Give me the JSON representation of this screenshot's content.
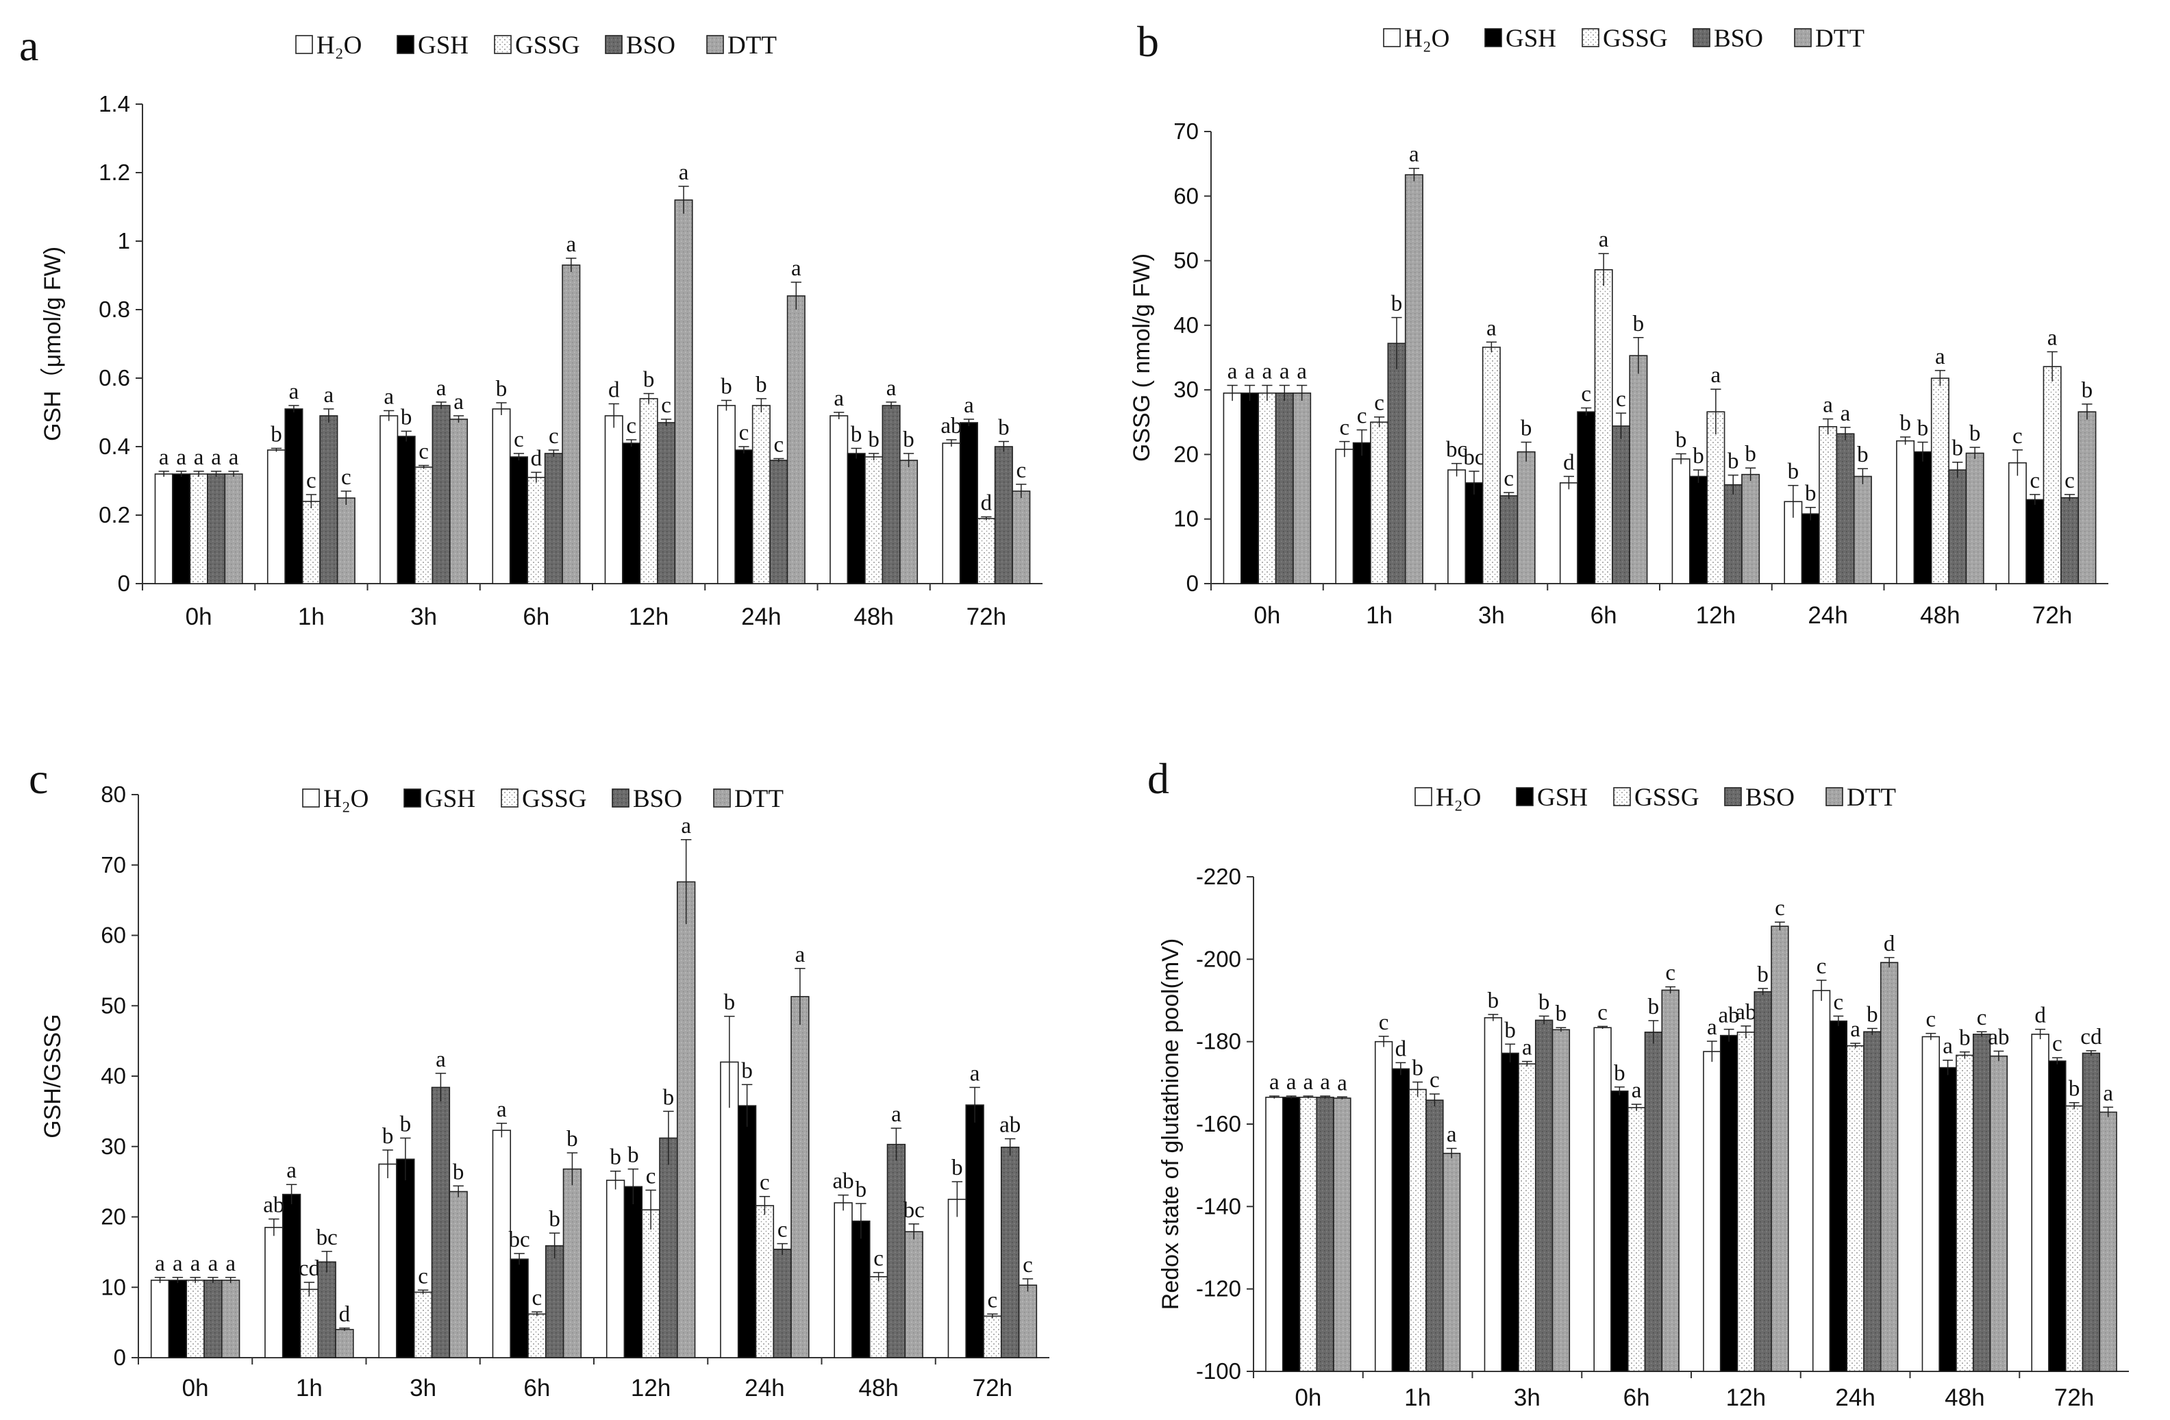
{
  "series_styles": [
    {
      "name": "H2O",
      "fill": "#ffffff",
      "pattern": "none"
    },
    {
      "name": "GSH",
      "fill": "#000000",
      "pattern": "none"
    },
    {
      "name": "GSSG",
      "fill": "#ffffff",
      "pattern": "dots"
    },
    {
      "name": "BSO",
      "fill": "#6d6d6d",
      "pattern": "darkgrain"
    },
    {
      "name": "DTT",
      "fill": "#a9a9a9",
      "pattern": "lightgrain"
    }
  ],
  "chart_data": [
    {
      "type": "bar",
      "letter": "a",
      "title": "",
      "ylabel": "GSH（μmol/g FW)",
      "xlabel": "",
      "legend": [
        "H₂O",
        "GSH",
        "GSSG",
        "BSO",
        "DTT"
      ],
      "categories": [
        "0h",
        "1h",
        "3h",
        "6h",
        "12h",
        "24h",
        "48h",
        "72h"
      ],
      "ylim": [
        0,
        1.4
      ],
      "yticks": [
        "0",
        "0.2",
        "0.4",
        "0.6",
        "0.8",
        "1",
        "1.2",
        "1.4"
      ],
      "ytick_values": [
        0,
        0.2,
        0.4,
        0.6,
        0.8,
        1,
        1.2,
        1.4
      ],
      "series": [
        {
          "name": "H2O",
          "values": [
            0.32,
            0.39,
            0.49,
            0.51,
            0.49,
            0.52,
            0.49,
            0.41
          ],
          "errors": [
            0.008,
            0.005,
            0.015,
            0.018,
            0.035,
            0.015,
            0.01,
            0.01
          ],
          "labels": [
            "a",
            "b",
            "a",
            "b",
            "d",
            "b",
            "a",
            "ab"
          ]
        },
        {
          "name": "GSH",
          "values": [
            0.32,
            0.51,
            0.43,
            0.37,
            0.41,
            0.39,
            0.38,
            0.47
          ],
          "errors": [
            0.008,
            0.01,
            0.015,
            0.01,
            0.01,
            0.01,
            0.015,
            0.01
          ],
          "labels": [
            "a",
            "a",
            "b",
            "c",
            "c",
            "c",
            "b",
            "a"
          ]
        },
        {
          "name": "GSSG",
          "values": [
            0.32,
            0.24,
            0.34,
            0.31,
            0.54,
            0.52,
            0.37,
            0.19
          ],
          "errors": [
            0.008,
            0.02,
            0.005,
            0.015,
            0.015,
            0.02,
            0.01,
            0.005
          ],
          "labels": [
            "a",
            "c",
            "c",
            "d",
            "b",
            "b",
            "b",
            "d"
          ]
        },
        {
          "name": "BSO",
          "values": [
            0.32,
            0.49,
            0.52,
            0.38,
            0.47,
            0.36,
            0.52,
            0.4
          ],
          "errors": [
            0.008,
            0.02,
            0.01,
            0.01,
            0.01,
            0.005,
            0.01,
            0.015
          ],
          "labels": [
            "a",
            "a",
            "a",
            "c",
            "c",
            "c",
            "a",
            "b"
          ]
        },
        {
          "name": "DTT",
          "values": [
            0.32,
            0.25,
            0.48,
            0.93,
            1.12,
            0.84,
            0.36,
            0.27
          ],
          "errors": [
            0.008,
            0.02,
            0.01,
            0.02,
            0.04,
            0.04,
            0.02,
            0.02
          ],
          "labels": [
            "a",
            "c",
            "a",
            "a",
            "a",
            "a",
            "b",
            "c"
          ]
        }
      ]
    },
    {
      "type": "bar",
      "letter": "b",
      "title": "",
      "ylabel": "GSSG ( nmol/g FW)",
      "xlabel": "",
      "legend": [
        "H₂O",
        "GSH",
        "GSSG",
        "BSO",
        "DTT"
      ],
      "categories": [
        "0h",
        "1h",
        "3h",
        "6h",
        "12h",
        "24h",
        "48h",
        "72h"
      ],
      "ylim": [
        0,
        70
      ],
      "yticks": [
        "0",
        "10",
        "20",
        "30",
        "40",
        "50",
        "60",
        "70"
      ],
      "ytick_values": [
        0,
        10,
        20,
        30,
        40,
        50,
        60,
        70
      ],
      "series": [
        {
          "name": "H2O",
          "values": [
            29.5,
            20.8,
            17.6,
            15.6,
            19.3,
            12.7,
            22.1,
            18.7
          ],
          "errors": [
            1.2,
            1.2,
            1.0,
            1.0,
            0.8,
            2.5,
            0.6,
            2.0
          ],
          "labels": [
            "a",
            "c",
            "bc",
            "d",
            "b",
            "b",
            "b",
            "c"
          ]
        },
        {
          "name": "GSH",
          "values": [
            29.5,
            21.8,
            15.6,
            26.6,
            16.6,
            10.8,
            20.4,
            13.0
          ],
          "errors": [
            1.2,
            2.0,
            1.8,
            0.6,
            1.0,
            1.0,
            1.5,
            0.8
          ],
          "labels": [
            "a",
            "c",
            "bc",
            "c",
            "b",
            "b",
            "b",
            "c"
          ]
        },
        {
          "name": "GSSG",
          "values": [
            29.5,
            25.0,
            36.6,
            48.6,
            26.6,
            24.3,
            31.8,
            33.6
          ],
          "errors": [
            1.2,
            0.8,
            0.8,
            2.5,
            3.5,
            1.2,
            1.2,
            2.3
          ],
          "labels": [
            "a",
            "c",
            "a",
            "a",
            "a",
            "a",
            "a",
            "a"
          ]
        },
        {
          "name": "BSO",
          "values": [
            29.5,
            37.2,
            13.6,
            24.4,
            15.3,
            23.2,
            17.6,
            13.3
          ],
          "errors": [
            1.2,
            4.0,
            0.5,
            2.0,
            1.5,
            1.0,
            1.2,
            0.5
          ],
          "labels": [
            "a",
            "b",
            "c",
            "c",
            "b",
            "a",
            "b",
            "c"
          ]
        },
        {
          "name": "DTT",
          "values": [
            29.5,
            63.3,
            20.4,
            35.3,
            16.9,
            16.6,
            20.2,
            26.6
          ],
          "errors": [
            1.2,
            1.0,
            1.5,
            2.8,
            1.0,
            1.2,
            0.9,
            1.2
          ],
          "labels": [
            "a",
            "a",
            "b",
            "b",
            "b",
            "b",
            "b",
            "b"
          ]
        }
      ]
    },
    {
      "type": "bar",
      "letter": "c",
      "title": "",
      "ylabel": "GSH/GSSG",
      "xlabel": "",
      "legend": [
        "H₂O",
        "GSH",
        "GSSG",
        "BSO",
        "DTT"
      ],
      "categories": [
        "0h",
        "1h",
        "3h",
        "6h",
        "12h",
        "24h",
        "48h",
        "72h"
      ],
      "ylim": [
        0,
        80
      ],
      "yticks": [
        "0",
        "10",
        "20",
        "30",
        "40",
        "50",
        "60",
        "70",
        "80"
      ],
      "ytick_values": [
        0,
        10,
        20,
        30,
        40,
        50,
        60,
        70,
        80
      ],
      "series": [
        {
          "name": "H2O",
          "values": [
            11,
            18.5,
            27.5,
            32.3,
            25.2,
            42.0,
            22.0,
            22.5
          ],
          "errors": [
            0.4,
            1.2,
            2.0,
            1.0,
            1.3,
            6.5,
            1.1,
            2.5
          ],
          "labels": [
            "a",
            "ab",
            "b",
            "a",
            "b",
            "b",
            "ab",
            "b"
          ]
        },
        {
          "name": "GSH",
          "values": [
            11,
            23.2,
            28.2,
            14.0,
            24.3,
            35.8,
            19.4,
            35.9
          ],
          "errors": [
            0.4,
            1.4,
            3.0,
            0.8,
            2.5,
            3.0,
            2.5,
            2.5
          ],
          "labels": [
            "a",
            "a",
            "b",
            "bc",
            "b",
            "b",
            "b",
            "a"
          ]
        },
        {
          "name": "GSSG",
          "values": [
            11,
            9.7,
            9.3,
            6.2,
            21.0,
            21.6,
            11.5,
            5.9
          ],
          "errors": [
            0.4,
            1.0,
            0.3,
            0.3,
            2.8,
            1.3,
            0.6,
            0.3
          ],
          "labels": [
            "a",
            "cd",
            "c",
            "c",
            "c",
            "c",
            "c",
            "c"
          ]
        },
        {
          "name": "BSO",
          "values": [
            11,
            13.6,
            38.4,
            15.9,
            31.2,
            15.4,
            30.3,
            29.9
          ],
          "errors": [
            0.4,
            1.5,
            2.0,
            1.8,
            3.8,
            0.8,
            2.3,
            1.2
          ],
          "labels": [
            "a",
            "bc",
            "a",
            "b",
            "b",
            "c",
            "a",
            "ab"
          ]
        },
        {
          "name": "DTT",
          "values": [
            11,
            4.0,
            23.6,
            26.8,
            67.6,
            51.3,
            17.9,
            10.3
          ],
          "errors": [
            0.4,
            0.2,
            0.8,
            2.3,
            6.0,
            4.0,
            1.1,
            0.9
          ],
          "labels": [
            "a",
            "d",
            "b",
            "b",
            "a",
            "a",
            "bc",
            "c"
          ]
        }
      ]
    },
    {
      "type": "bar",
      "letter": "d",
      "title": "",
      "ylabel": "Redox state of glutathione pool(mV)",
      "xlabel": "",
      "legend": [
        "H₂O",
        "GSH",
        "GSSG",
        "BSO",
        "DTT"
      ],
      "categories": [
        "0h",
        "1h",
        "3h",
        "6h",
        "12h",
        "24h",
        "48h",
        "72h"
      ],
      "ylim": [
        -100,
        -220
      ],
      "yticks": [
        "-220",
        "-200",
        "-180",
        "-160",
        "-140",
        "-120",
        "-100"
      ],
      "ytick_values": [
        -220,
        -200,
        -180,
        -160,
        -140,
        -120,
        -100
      ],
      "series": [
        {
          "name": "H2O",
          "values": [
            -166.5,
            -180,
            -185.8,
            -183.4,
            -177.6,
            -192.4,
            -181.2,
            -181.8
          ],
          "errors": [
            0.3,
            1.3,
            0.8,
            0.3,
            2.5,
            2.5,
            0.8,
            1.2
          ],
          "labels": [
            "a",
            "c",
            "b",
            "c",
            "a",
            "c",
            "c",
            "d"
          ]
        },
        {
          "name": "GSH",
          "values": [
            -166.5,
            -173.4,
            -177.2,
            -168,
            -181.5,
            -185,
            -173.7,
            -175.3
          ],
          "errors": [
            0.3,
            1.5,
            2.2,
            1.0,
            1.5,
            1.2,
            1.8,
            0.8
          ],
          "labels": [
            "a",
            "d",
            "b",
            "b",
            "ab",
            "c",
            "a",
            "c"
          ]
        },
        {
          "name": "GSSG",
          "values": [
            -166.5,
            -168.4,
            -174.6,
            -164,
            -182.3,
            -179,
            -176.7,
            -164.4
          ],
          "errors": [
            0.3,
            1.8,
            0.6,
            0.8,
            1.5,
            0.6,
            0.8,
            0.8
          ],
          "labels": [
            "a",
            "b",
            "a",
            "a",
            "ab",
            "a",
            "b",
            "b"
          ]
        },
        {
          "name": "BSO",
          "values": [
            -166.5,
            -165.8,
            -185.2,
            -182.3,
            -192.1,
            -182.4,
            -181.8,
            -177.2
          ],
          "errors": [
            0.3,
            1.5,
            1.0,
            2.8,
            0.8,
            0.8,
            0.6,
            0.6
          ],
          "labels": [
            "a",
            "c",
            "b",
            "b",
            "b",
            "b",
            "c",
            "cd"
          ]
        },
        {
          "name": "DTT",
          "values": [
            -166.3,
            -152.9,
            -182.9,
            -192.5,
            -208,
            -199.2,
            -176.5,
            -162.9
          ],
          "errors": [
            0.3,
            1.2,
            0.5,
            0.8,
            1.0,
            1.2,
            1.2,
            1.2
          ],
          "labels": [
            "a",
            "a",
            "b",
            "c",
            "c",
            "d",
            "ab",
            "a"
          ]
        }
      ]
    }
  ]
}
